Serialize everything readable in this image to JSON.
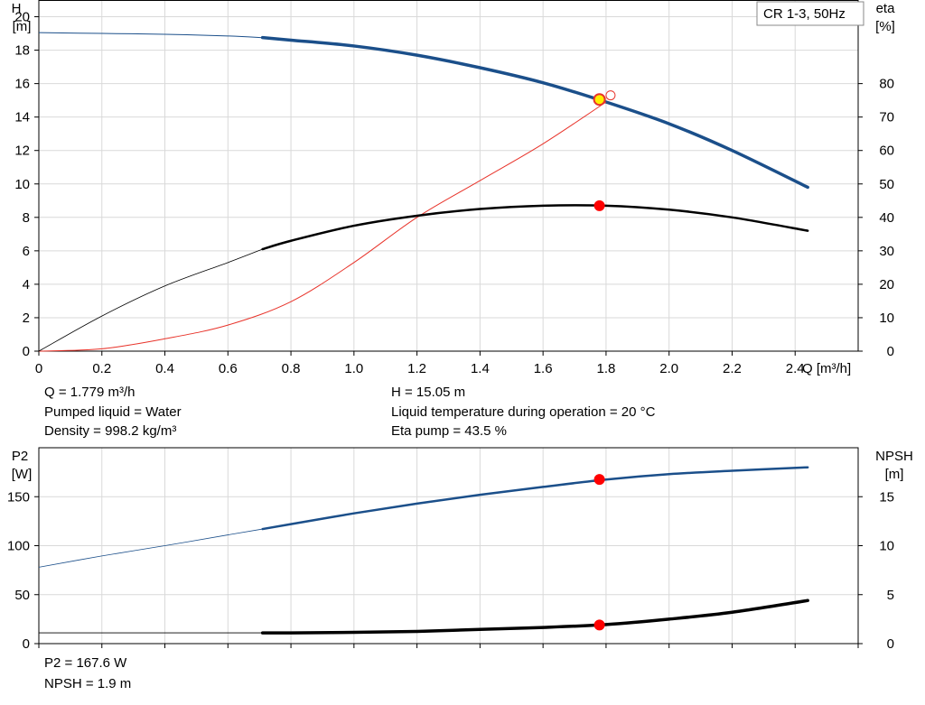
{
  "chart_data": [
    {
      "type": "line",
      "title": "CR 1-3, 50Hz",
      "xlabel": "Q [m³/h]",
      "ylabel": [
        "H",
        "[m]"
      ],
      "y2label": [
        "eta",
        "[%]"
      ],
      "xlim": [
        0,
        2.6
      ],
      "ylim": [
        0,
        21
      ],
      "y2lim": [
        0,
        105
      ],
      "x_ticks": [
        "0",
        "0.2",
        "0.4",
        "0.6",
        "0.8",
        "1.0",
        "1.2",
        "1.4",
        "1.6",
        "1.8",
        "2.0",
        "2.2",
        "2.4"
      ],
      "y_ticks": [
        "0",
        "2",
        "4",
        "6",
        "8",
        "10",
        "12",
        "14",
        "16",
        "18",
        "20"
      ],
      "y2_ticks": [
        "0",
        "10",
        "20",
        "30",
        "40",
        "50",
        "60",
        "70",
        "80"
      ],
      "grid": true,
      "series": [
        {
          "name": "H",
          "axis": "left",
          "color": "#1b4f8a",
          "thin_until": 0.71,
          "x": [
            0,
            0.2,
            0.4,
            0.6,
            0.71,
            0.8,
            1.0,
            1.2,
            1.4,
            1.6,
            1.8,
            2.0,
            2.2,
            2.44
          ],
          "y": [
            19.05,
            19.0,
            18.95,
            18.85,
            18.75,
            18.6,
            18.25,
            17.7,
            16.95,
            16.05,
            14.9,
            13.6,
            12.0,
            9.8
          ]
        },
        {
          "name": "eta",
          "axis": "right",
          "color": "#e8332a",
          "x": [
            0,
            0.2,
            0.4,
            0.6,
            0.8,
            1.0,
            1.2,
            1.4,
            1.6,
            1.8
          ],
          "y": [
            0,
            0.7,
            3.7,
            7.8,
            14.8,
            26.5,
            40.0,
            51.0,
            62.0,
            74.5
          ]
        },
        {
          "name": "eta pump",
          "axis": "right",
          "color": "#000000",
          "thin_until": 0.71,
          "x": [
            0,
            0.2,
            0.4,
            0.6,
            0.71,
            0.8,
            1.0,
            1.2,
            1.4,
            1.6,
            1.8,
            2.0,
            2.2,
            2.44
          ],
          "y": [
            0,
            10.5,
            19.5,
            26.5,
            30.5,
            33.0,
            37.5,
            40.5,
            42.5,
            43.5,
            43.5,
            42.3,
            40.0,
            36.0
          ]
        }
      ],
      "operating_point": {
        "x": 1.779,
        "h": 15.05,
        "eta": 43.5
      },
      "info": [
        "Q = 1.779 m³/h",
        "Pumped liquid = Water",
        "Density = 998.2 kg/m³",
        "H = 15.05 m",
        "Liquid temperature during operation = 20 °C",
        "Eta pump = 43.5 %"
      ]
    },
    {
      "type": "line",
      "xlabel": "",
      "ylabel": [
        "P2",
        "[W]"
      ],
      "y2label": [
        "NPSH",
        "[m]"
      ],
      "xlim": [
        0,
        2.6
      ],
      "ylim": [
        0,
        200
      ],
      "y2lim": [
        0,
        20
      ],
      "y_ticks": [
        "0",
        "50",
        "100",
        "150"
      ],
      "y2_ticks": [
        "0",
        "5",
        "10",
        "15"
      ],
      "grid": true,
      "series": [
        {
          "name": "P2",
          "axis": "left",
          "color": "#1b4f8a",
          "thin_until": 0.71,
          "x": [
            0,
            0.2,
            0.4,
            0.6,
            0.71,
            0.8,
            1.0,
            1.2,
            1.4,
            1.6,
            1.8,
            2.0,
            2.2,
            2.44
          ],
          "y": [
            78,
            89.5,
            100,
            111,
            117,
            122,
            133,
            143,
            152,
            160,
            167.5,
            173,
            176.5,
            180
          ]
        },
        {
          "name": "NPSH",
          "axis": "right",
          "color": "#000000",
          "thin_until": 0.71,
          "x": [
            0,
            0.71,
            0.8,
            1.0,
            1.2,
            1.4,
            1.6,
            1.8,
            2.0,
            2.2,
            2.44
          ],
          "y": [
            1.1,
            1.1,
            1.1,
            1.15,
            1.25,
            1.45,
            1.65,
            1.95,
            2.5,
            3.2,
            4.4
          ]
        }
      ],
      "operating_point": {
        "x": 1.779,
        "p2": 167.6,
        "npsh": 1.9
      },
      "info": [
        "P2 = 167.6 W",
        "NPSH = 1.9 m"
      ]
    }
  ]
}
